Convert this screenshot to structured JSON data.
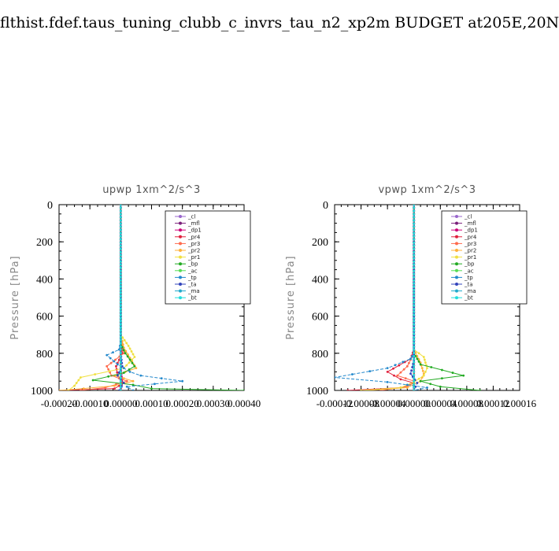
{
  "page": {
    "title": "flthist.fdef.taus_tuning_clubb_c_invrs_tau_n2_xp2m  BUDGET at205E,20N"
  },
  "legend_entries": [
    "_cl",
    "_mfl",
    "_dp1",
    "_pr4",
    "_pr3",
    "_pr2",
    "_pr1",
    "_bp",
    "_ac",
    "_tp",
    "_ta",
    "_ma",
    "_bt"
  ],
  "series_colors": {
    "_cl": "#9966cc",
    "_mfl": "#7a1f7a",
    "_dp1": "#cc0077",
    "_pr4": "#e0203c",
    "_pr3": "#ff6a4d",
    "_pr2": "#ffb03a",
    "_pr1": "#f0e040",
    "_bp": "#22aa22",
    "_ac": "#55dd55",
    "_tp": "#2288cc",
    "_ta": "#3344bb",
    "_ma": "#22aacc",
    "_bt": "#22dddd"
  },
  "chart_data": [
    {
      "type": "line",
      "title": "upwp   1xm^2/s^3",
      "ylabel": "Pressure  [hPa]",
      "xlabel": "",
      "xlim": [
        -0.0002,
        0.0004
      ],
      "ylim": [
        1000,
        0
      ],
      "x_tick_labels": [
        "-0.00020",
        "-0.00010",
        "0.00000",
        "0.00010",
        "0.00020",
        "0.00030",
        "0.00040"
      ],
      "x_ticks": [
        -0.0002,
        -0.0001,
        0,
        0.0001,
        0.0002,
        0.0003,
        0.0004
      ],
      "y_tick_labels": [
        "0",
        "200",
        "400",
        "600",
        "800",
        "1000"
      ],
      "y_ticks": [
        0,
        200,
        400,
        600,
        800,
        1000
      ],
      "legend_location": "top-right",
      "grid": false,
      "series": [
        {
          "name": "_cl",
          "x": [
            0,
            0,
            0,
            0
          ],
          "y": [
            0,
            500,
            900,
            1000
          ]
        },
        {
          "name": "_mfl",
          "x": [
            0,
            0,
            0,
            0
          ],
          "y": [
            0,
            500,
            900,
            1000
          ]
        },
        {
          "name": "_dp1",
          "x": [
            0,
            0,
            0,
            5e-06,
            0
          ],
          "y": [
            0,
            500,
            880,
            960,
            1000
          ]
        },
        {
          "name": "_pr4",
          "x": [
            0,
            0,
            5e-06,
            -1.5e-05,
            -1e-05,
            1e-05,
            -2e-05,
            -0.0002
          ],
          "y": [
            0,
            700,
            800,
            870,
            920,
            960,
            990,
            1000
          ]
        },
        {
          "name": "_pr3",
          "x": [
            0,
            0,
            1e-05,
            -4.5e-05,
            -3e-05,
            2e-05,
            -5e-05,
            -0.00013
          ],
          "y": [
            0,
            700,
            800,
            870,
            920,
            950,
            985,
            1000
          ]
        },
        {
          "name": "_pr2",
          "x": [
            0,
            0,
            1e-05,
            5e-05,
            -2e-05,
            4e-05,
            -2e-05,
            -0.00012,
            -0.0002
          ],
          "y": [
            0,
            700,
            770,
            880,
            920,
            950,
            975,
            990,
            1000
          ]
        },
        {
          "name": "_pr1",
          "x": [
            0,
            0,
            2.5e-05,
            4.5e-05,
            1e-05,
            -0.00013,
            -0.00015,
            -0.00017
          ],
          "y": [
            0,
            700,
            760,
            820,
            880,
            930,
            975,
            1000
          ]
        },
        {
          "name": "_bp",
          "x": [
            0,
            0,
            1.5e-05,
            4.5e-05,
            1e-05,
            -9e-05,
            4e-05,
            0.0001,
            0.0004
          ],
          "y": [
            0,
            750,
            800,
            870,
            905,
            945,
            970,
            990,
            1000
          ]
        },
        {
          "name": "_ac",
          "x": [
            0,
            0,
            0
          ],
          "y": [
            0,
            900,
            1000
          ]
        },
        {
          "name": "_tp",
          "x": [
            0,
            0,
            -5e-06,
            -4.5e-05,
            -1e-05,
            3e-05,
            6.5e-05,
            0.0002,
            2e-05,
            4e-05
          ],
          "y": [
            0,
            740,
            780,
            810,
            860,
            900,
            920,
            950,
            980,
            1000
          ]
        },
        {
          "name": "_ta",
          "x": [
            0,
            0,
            5e-06,
            -1e-05,
            1e-05,
            -5e-06
          ],
          "y": [
            0,
            800,
            870,
            920,
            960,
            1000
          ]
        },
        {
          "name": "_ma",
          "x": [
            0,
            0,
            0
          ],
          "y": [
            0,
            900,
            1000
          ]
        },
        {
          "name": "_bt",
          "x": [
            0,
            0,
            0
          ],
          "y": [
            0,
            900,
            1000
          ]
        }
      ]
    },
    {
      "type": "line",
      "title": "vpwp   1xm^2/s^3",
      "ylabel": "Pressure  [hPa]",
      "xlabel": "",
      "xlim": [
        -0.00012,
        0.00016
      ],
      "ylim": [
        1000,
        0
      ],
      "x_tick_labels": [
        "-0.00012",
        "-0.00008",
        "-0.00004",
        "0.00000",
        "0.00004",
        "0.00008",
        "0.00012",
        "0.00016"
      ],
      "x_ticks": [
        -0.00012,
        -8e-05,
        -4e-05,
        0,
        4e-05,
        8e-05,
        0.00012,
        0.00016
      ],
      "y_tick_labels": [
        "0",
        "200",
        "400",
        "600",
        "800",
        "1000"
      ],
      "y_ticks": [
        0,
        200,
        400,
        600,
        800,
        1000
      ],
      "legend_location": "top-right",
      "grid": false,
      "series": [
        {
          "name": "_cl",
          "x": [
            0,
            0,
            0,
            0
          ],
          "y": [
            0,
            500,
            900,
            1000
          ]
        },
        {
          "name": "_mfl",
          "x": [
            0,
            0,
            0,
            0
          ],
          "y": [
            0,
            500,
            900,
            1000
          ]
        },
        {
          "name": "_dp1",
          "x": [
            0,
            0,
            0,
            0
          ],
          "y": [
            0,
            500,
            900,
            1000
          ]
        },
        {
          "name": "_pr4",
          "x": [
            0,
            0,
            -5e-06,
            -4e-05,
            -2e-05,
            0,
            -2e-05,
            -0.0001
          ],
          "y": [
            0,
            780,
            830,
            900,
            940,
            960,
            985,
            1000
          ]
        },
        {
          "name": "_pr3",
          "x": [
            0,
            0,
            -1e-05,
            -2.5e-05,
            0,
            -1e-05,
            -5e-05
          ],
          "y": [
            0,
            800,
            870,
            920,
            950,
            980,
            1000
          ]
        },
        {
          "name": "_pr2",
          "x": [
            0,
            0,
            1e-05,
            1.5e-05,
            1e-05,
            -1e-05,
            -7e-05
          ],
          "y": [
            0,
            780,
            850,
            910,
            950,
            985,
            1000
          ]
        },
        {
          "name": "_pr1",
          "x": [
            0,
            0,
            1.5e-05,
            2e-05,
            1.5e-05,
            0,
            -2e-05,
            -8e-05
          ],
          "y": [
            0,
            780,
            820,
            880,
            920,
            955,
            985,
            1000
          ]
        },
        {
          "name": "_bp",
          "x": [
            0,
            0,
            1e-05,
            7.5e-05,
            1e-05,
            4e-05,
            0.0001
          ],
          "y": [
            0,
            800,
            860,
            920,
            950,
            980,
            1000
          ]
        },
        {
          "name": "_ac",
          "x": [
            0,
            0,
            0
          ],
          "y": [
            0,
            900,
            1000
          ]
        },
        {
          "name": "_tp",
          "x": [
            0,
            0,
            -5e-06,
            -4e-05,
            -0.00012,
            -4e-05,
            -1e-05,
            2e-05,
            0
          ],
          "y": [
            0,
            800,
            830,
            880,
            930,
            955,
            970,
            985,
            1000
          ]
        },
        {
          "name": "_ta",
          "x": [
            0,
            0,
            -5e-06,
            5e-06,
            0
          ],
          "y": [
            0,
            840,
            910,
            960,
            1000
          ]
        },
        {
          "name": "_ma",
          "x": [
            0,
            0,
            0
          ],
          "y": [
            0,
            900,
            1000
          ]
        },
        {
          "name": "_bt",
          "x": [
            0,
            0,
            0
          ],
          "y": [
            0,
            900,
            1000
          ]
        }
      ]
    }
  ]
}
